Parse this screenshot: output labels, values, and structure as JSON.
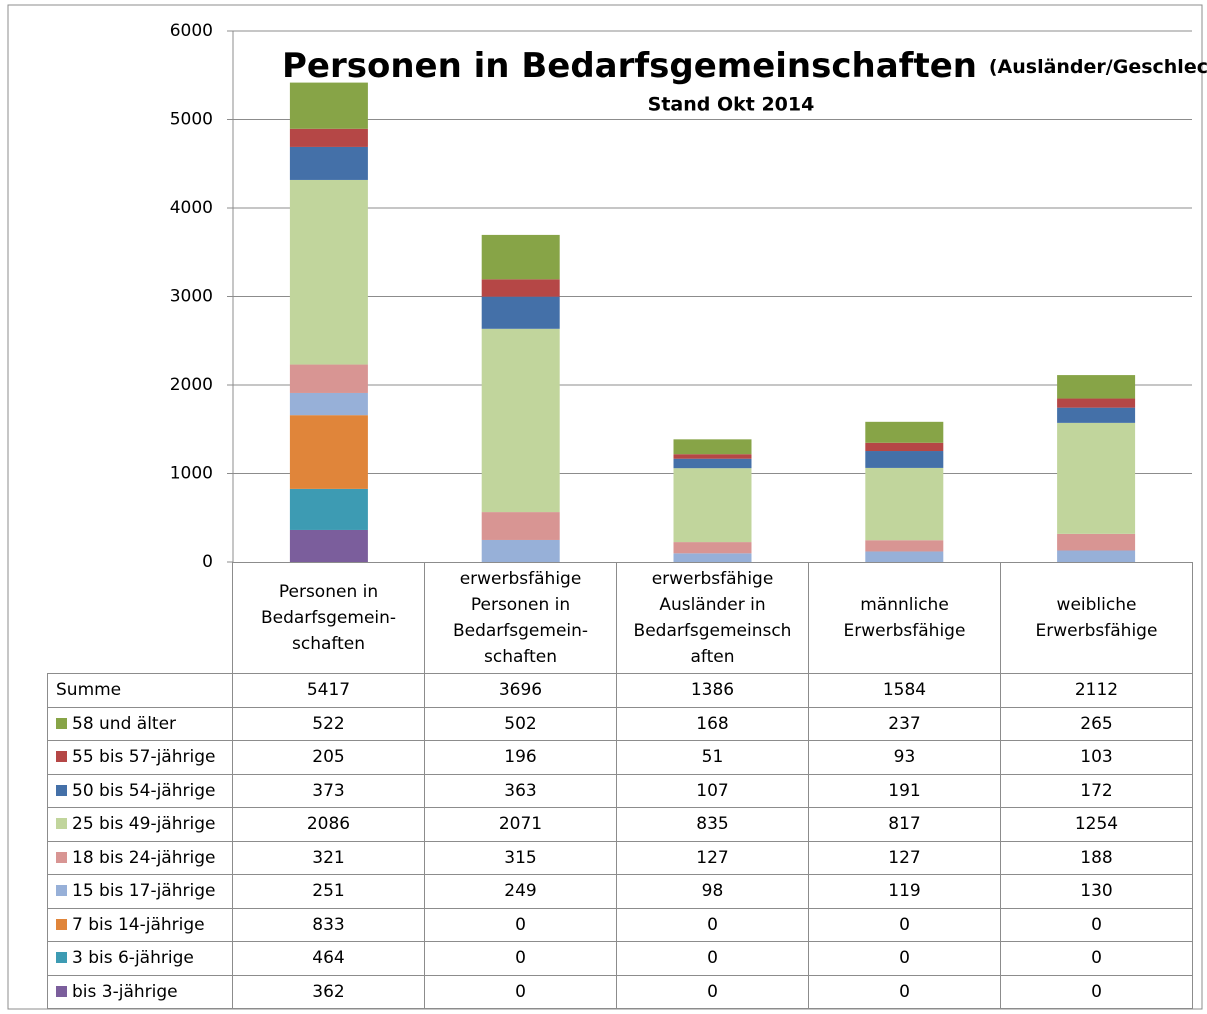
{
  "chart_data": {
    "type": "stacked_bar",
    "title": "Personen in Bedarfsgemeinschaften",
    "title_suffix": "(Ausländer/Geschlecht),",
    "subtitle": "Stand Okt 2014",
    "categories": [
      "Personen in\nBedarfsgemein-\nschaften",
      "erwerbsfähige\nPersonen in\nBedarfsgemein-\nschaften",
      "erwerbsfähige\nAusländer in\nBedarfsgemeinsch\naften",
      "männliche\nErwerbsfähige",
      "weibliche\nErwerbsfähige"
    ],
    "total_label": "Summe",
    "totals": [
      5417,
      3696,
      1386,
      1584,
      2112
    ],
    "series": [
      {
        "name": "bis 3-jährige",
        "color": "#7b5e9c",
        "values": [
          362,
          0,
          0,
          0,
          0
        ]
      },
      {
        "name": "3 bis 6-jährige",
        "color": "#3d9bb3",
        "values": [
          464,
          0,
          0,
          0,
          0
        ]
      },
      {
        "name": "7 bis 14-jährige",
        "color": "#e0853a",
        "values": [
          833,
          0,
          0,
          0,
          0
        ]
      },
      {
        "name": "15 bis 17-jährige",
        "color": "#97b0d8",
        "values": [
          251,
          249,
          98,
          119,
          130
        ]
      },
      {
        "name": "18 bis 24-jährige",
        "color": "#d89593",
        "values": [
          321,
          315,
          127,
          127,
          188
        ]
      },
      {
        "name": "25 bis 49-jährige",
        "color": "#c1d59c",
        "values": [
          2086,
          2071,
          835,
          817,
          1254
        ]
      },
      {
        "name": "50 bis 54-jährige",
        "color": "#4470a8",
        "values": [
          373,
          363,
          107,
          191,
          172
        ]
      },
      {
        "name": "55 bis 57-jährige",
        "color": "#b54746",
        "values": [
          205,
          196,
          51,
          93,
          103
        ]
      },
      {
        "name": "58 und älter",
        "color": "#87a447",
        "values": [
          522,
          502,
          168,
          237,
          265
        ]
      }
    ],
    "ylim": [
      0,
      6000
    ],
    "yticks": [
      0,
      1000,
      2000,
      3000,
      4000,
      5000,
      6000
    ],
    "grid": true
  }
}
